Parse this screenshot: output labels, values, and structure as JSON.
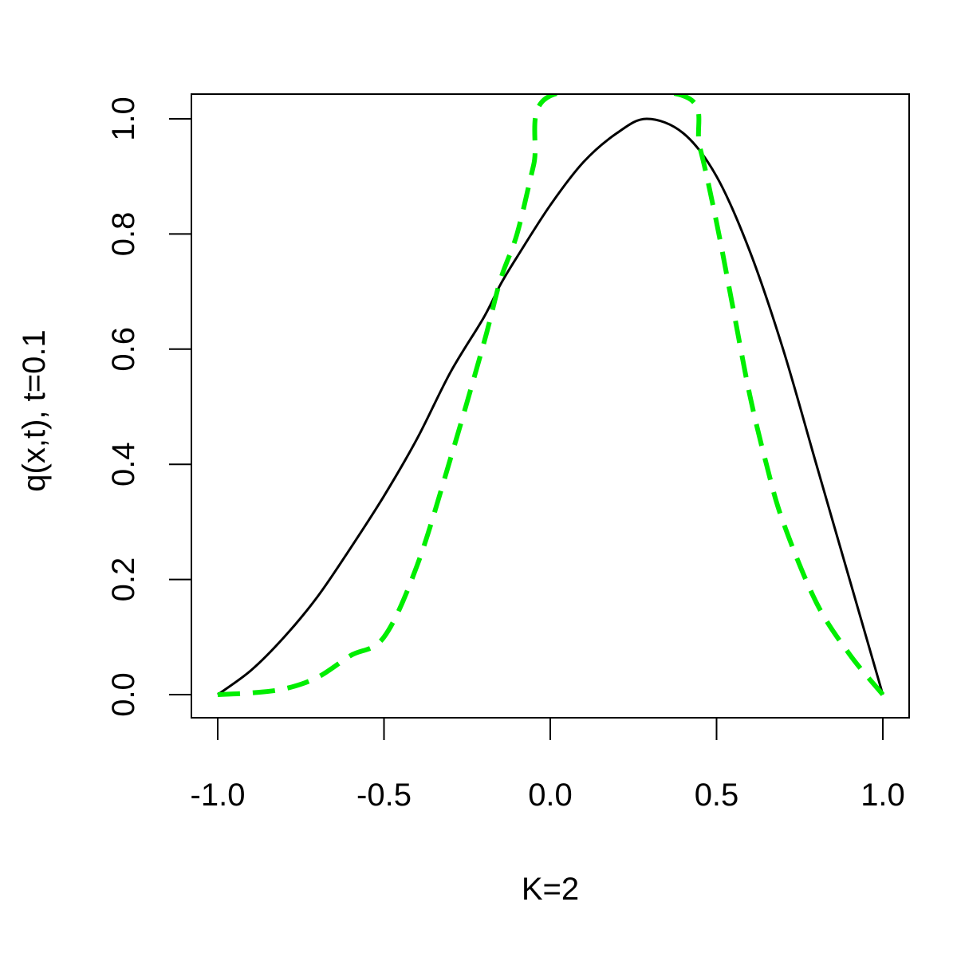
{
  "chart_data": {
    "type": "line",
    "title": "",
    "xlabel": "K=2",
    "ylabel": "q(x,t), t=0.1",
    "xlim": [
      -1.0,
      1.0
    ],
    "ylim": [
      0.0,
      1.0
    ],
    "x_ticks": [
      "-1.0",
      "-0.5",
      "0.0",
      "0.5",
      "1.0"
    ],
    "y_ticks": [
      "0.0",
      "0.2",
      "0.4",
      "0.6",
      "0.8",
      "1.0"
    ],
    "grid": false,
    "legend": "none",
    "series": [
      {
        "style": "solid",
        "color": "#000000",
        "x": [
          -1.0,
          -0.9,
          -0.8,
          -0.7,
          -0.6,
          -0.5,
          -0.4,
          -0.3,
          -0.2,
          -0.15,
          -0.1,
          0.0,
          0.1,
          0.2,
          0.29,
          0.4,
          0.5,
          0.6,
          0.7,
          0.8,
          0.9,
          1.0
        ],
        "y": [
          0.0,
          0.042,
          0.1,
          0.17,
          0.255,
          0.345,
          0.445,
          0.56,
          0.655,
          0.712,
          0.76,
          0.85,
          0.925,
          0.975,
          1.0,
          0.975,
          0.9,
          0.77,
          0.6,
          0.4,
          0.2,
          0.0
        ]
      },
      {
        "style": "dashed",
        "color": "#00ee00",
        "x": [
          -1.0,
          -0.9,
          -0.8,
          -0.7,
          -0.6,
          -0.5,
          -0.4,
          -0.3,
          -0.2,
          -0.15,
          -0.1,
          -0.05,
          0.0,
          0.4,
          0.45,
          0.5,
          0.55,
          0.6,
          0.65,
          0.7,
          0.8,
          0.9,
          1.0
        ],
        "y": [
          0.0,
          0.003,
          0.01,
          0.03,
          0.068,
          0.1,
          0.225,
          0.41,
          0.61,
          0.72,
          0.8,
          0.92,
          1.04,
          1.04,
          0.95,
          0.82,
          0.67,
          0.52,
          0.4,
          0.3,
          0.16,
          0.07,
          0.0
        ]
      }
    ]
  }
}
